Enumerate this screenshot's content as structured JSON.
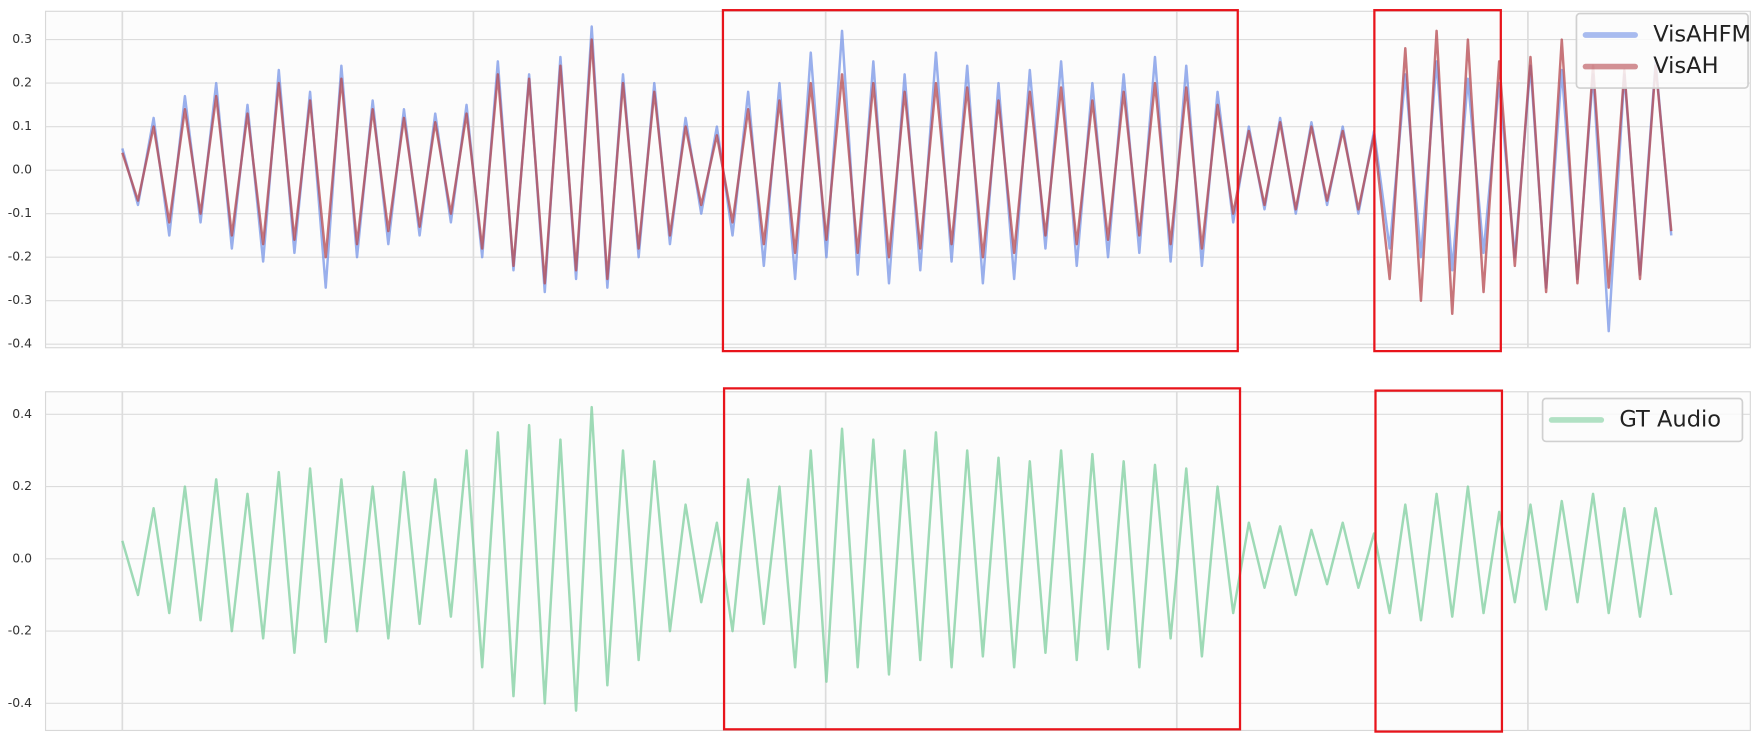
{
  "chart_data": [
    {
      "type": "line",
      "grid": true,
      "legend": "upper right",
      "ylim": [
        -0.408,
        0.365
      ],
      "yticks": [
        -0.4,
        -0.3,
        -0.2,
        -0.1,
        {
          "value": 0,
          "label": "0.0"
        },
        0.1,
        0.2,
        0.3
      ],
      "series": [
        {
          "name": "VisAHFM",
          "color": "#6f8fe6",
          "values": [
            0.05,
            -0.08,
            0.12,
            -0.15,
            0.17,
            -0.12,
            0.2,
            -0.18,
            0.15,
            -0.21,
            0.23,
            -0.19,
            0.18,
            -0.27,
            0.24,
            -0.2,
            0.16,
            -0.17,
            0.14,
            -0.15,
            0.13,
            -0.12,
            0.15,
            -0.2,
            0.25,
            -0.23,
            0.22,
            -0.28,
            0.26,
            -0.25,
            0.33,
            -0.27,
            0.22,
            -0.2,
            0.2,
            -0.17,
            0.12,
            -0.1,
            0.1,
            -0.15,
            0.18,
            -0.22,
            0.2,
            -0.25,
            0.27,
            -0.2,
            0.32,
            -0.24,
            0.25,
            -0.26,
            0.22,
            -0.23,
            0.27,
            -0.21,
            0.24,
            -0.26,
            0.2,
            -0.25,
            0.23,
            -0.18,
            0.25,
            -0.22,
            0.2,
            -0.2,
            0.22,
            -0.19,
            0.26,
            -0.21,
            0.24,
            -0.22,
            0.18,
            -0.12,
            0.1,
            -0.09,
            0.12,
            -0.1,
            0.11,
            -0.08,
            0.1,
            -0.1,
            0.09,
            -0.18,
            0.22,
            -0.2,
            0.25,
            -0.23,
            0.21,
            -0.19,
            0.2,
            -0.2,
            0.24,
            -0.27,
            0.23,
            -0.25,
            0.22,
            -0.37,
            0.22,
            -0.24,
            0.25,
            -0.15
          ]
        },
        {
          "name": "VisAH",
          "color": "#b5484f",
          "values": [
            0.04,
            -0.07,
            0.1,
            -0.12,
            0.14,
            -0.1,
            0.17,
            -0.15,
            0.13,
            -0.17,
            0.2,
            -0.16,
            0.16,
            -0.2,
            0.21,
            -0.17,
            0.14,
            -0.14,
            0.12,
            -0.13,
            0.11,
            -0.1,
            0.13,
            -0.18,
            0.22,
            -0.22,
            0.21,
            -0.26,
            0.24,
            -0.23,
            0.3,
            -0.25,
            0.2,
            -0.18,
            0.18,
            -0.15,
            0.1,
            -0.08,
            0.08,
            -0.12,
            0.14,
            -0.17,
            0.16,
            -0.19,
            0.2,
            -0.16,
            0.22,
            -0.19,
            0.2,
            -0.2,
            0.18,
            -0.18,
            0.2,
            -0.17,
            0.19,
            -0.2,
            0.16,
            -0.19,
            0.18,
            -0.15,
            0.19,
            -0.17,
            0.16,
            -0.16,
            0.18,
            -0.15,
            0.2,
            -0.17,
            0.19,
            -0.18,
            0.15,
            -0.1,
            0.09,
            -0.08,
            0.11,
            -0.09,
            0.1,
            -0.07,
            0.09,
            -0.09,
            0.08,
            -0.25,
            0.28,
            -0.3,
            0.32,
            -0.33,
            0.3,
            -0.28,
            0.25,
            -0.22,
            0.26,
            -0.28,
            0.3,
            -0.26,
            0.24,
            -0.27,
            0.23,
            -0.25,
            0.24,
            -0.14
          ]
        }
      ]
    },
    {
      "type": "line",
      "grid": true,
      "legend": "upper right",
      "ylim": [
        -0.475,
        0.4625
      ],
      "yticks": [
        -0.4,
        -0.2,
        {
          "value": 0,
          "label": "0.0"
        },
        0.2,
        0.4
      ],
      "series": [
        {
          "name": "GT Audio",
          "color": "#7fcf9f",
          "values": [
            0.05,
            -0.1,
            0.14,
            -0.15,
            0.2,
            -0.17,
            0.22,
            -0.2,
            0.18,
            -0.22,
            0.24,
            -0.26,
            0.25,
            -0.23,
            0.22,
            -0.2,
            0.2,
            -0.22,
            0.24,
            -0.18,
            0.22,
            -0.16,
            0.3,
            -0.3,
            0.35,
            -0.38,
            0.37,
            -0.4,
            0.33,
            -0.42,
            0.42,
            -0.35,
            0.3,
            -0.28,
            0.27,
            -0.2,
            0.15,
            -0.12,
            0.1,
            -0.2,
            0.22,
            -0.18,
            0.2,
            -0.3,
            0.3,
            -0.34,
            0.36,
            -0.3,
            0.33,
            -0.32,
            0.3,
            -0.28,
            0.35,
            -0.3,
            0.3,
            -0.27,
            0.28,
            -0.3,
            0.27,
            -0.26,
            0.3,
            -0.28,
            0.29,
            -0.25,
            0.27,
            -0.3,
            0.26,
            -0.22,
            0.25,
            -0.27,
            0.2,
            -0.15,
            0.1,
            -0.08,
            0.09,
            -0.1,
            0.08,
            -0.07,
            0.1,
            -0.08,
            0.07,
            -0.15,
            0.15,
            -0.17,
            0.18,
            -0.16,
            0.2,
            -0.15,
            0.13,
            -0.12,
            0.15,
            -0.14,
            0.16,
            -0.12,
            0.18,
            -0.15,
            0.14,
            -0.16,
            0.14,
            -0.1
          ]
        }
      ]
    }
  ]
}
